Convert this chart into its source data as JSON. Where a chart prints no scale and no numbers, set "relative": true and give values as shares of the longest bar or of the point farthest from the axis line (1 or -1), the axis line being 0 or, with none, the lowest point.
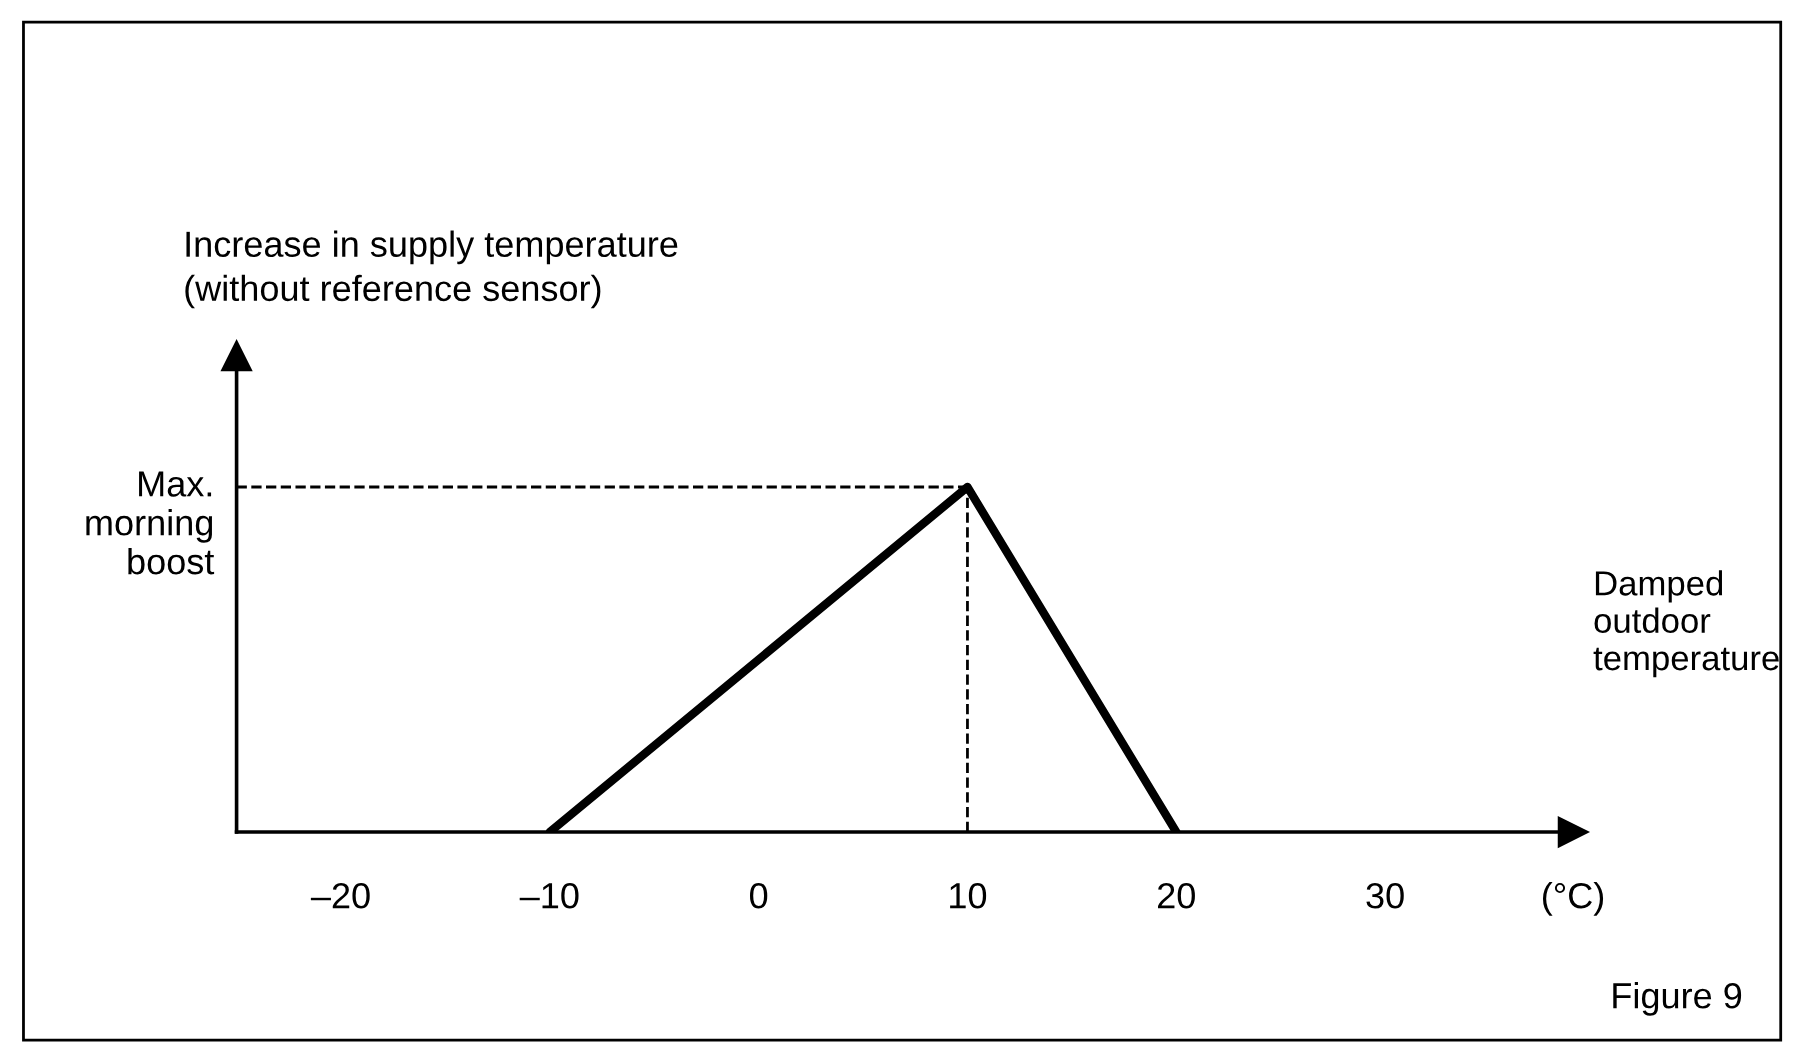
{
  "chart_data": {
    "type": "line",
    "relative": true,
    "ylabel": "Increase in supply temperature\n(without reference sensor)",
    "xlabel": "Damped\noutdoor\ntemperature",
    "x": [
      -10,
      10,
      20
    ],
    "series": [
      {
        "color": "#000000",
        "values": [
          0,
          1,
          0
        ]
      }
    ],
    "xlim": [
      -25,
      39
    ],
    "xticks": [
      {
        "value": -20,
        "label": "–20"
      },
      {
        "value": -10,
        "label": "–10"
      },
      0,
      10,
      20,
      30,
      {
        "value": 39,
        "label": "(°C)"
      }
    ],
    "ref_lines": [
      {
        "axis": "y",
        "value": 1,
        "label": "Max.\nmorning\nboost",
        "line_style": "dashed",
        "color": "#000000"
      },
      {
        "axis": "x",
        "value": 10,
        "line_style": "dashed",
        "color": "#000000"
      }
    ],
    "annotations": [
      "Figure 9"
    ],
    "grid": false,
    "marker": "none",
    "line_style": "solid"
  }
}
